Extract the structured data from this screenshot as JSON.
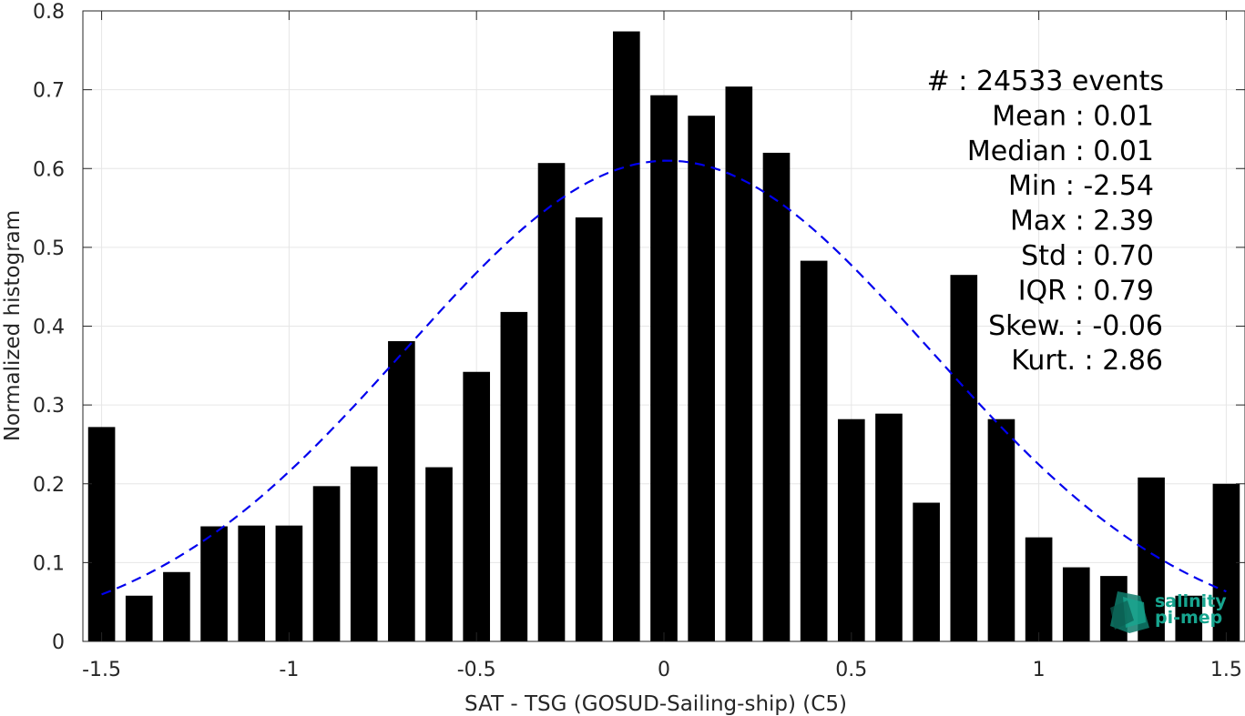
{
  "chart_data": {
    "type": "bar",
    "xlabel": "SAT - TSG (GOSUD-Sailing-ship) (C5)",
    "ylabel": "Normalized histogram",
    "xlim": [
      -1.55,
      1.55
    ],
    "ylim": [
      0,
      0.8
    ],
    "grid": true,
    "x": [
      -1.5,
      -1.4,
      -1.3,
      -1.2,
      -1.1,
      -1.0,
      -0.9,
      -0.8,
      -0.7,
      -0.6,
      -0.5,
      -0.4,
      -0.3,
      -0.2,
      -0.1,
      0.0,
      0.1,
      0.2,
      0.3,
      0.4,
      0.5,
      0.6,
      0.7,
      0.8,
      0.9,
      1.0,
      1.1,
      1.2,
      1.3,
      1.4,
      1.5
    ],
    "values": [
      0.272,
      0.058,
      0.088,
      0.146,
      0.147,
      0.147,
      0.197,
      0.222,
      0.381,
      0.221,
      0.342,
      0.418,
      0.607,
      0.538,
      0.774,
      0.693,
      0.667,
      0.704,
      0.62,
      0.483,
      0.282,
      0.289,
      0.176,
      0.465,
      0.282,
      0.132,
      0.094,
      0.083,
      0.208,
      0.058,
      0.2
    ],
    "bar_color": "#000000",
    "fit": {
      "type": "gaussian",
      "mean": 0.01,
      "std": 0.7,
      "peak": 0.61,
      "color": "#0000ee",
      "style": "dashed",
      "x_range": [
        -1.5,
        1.5
      ]
    },
    "x_ticks": [
      "-1.5",
      "-1",
      "-0.5",
      "0",
      "0.5",
      "1",
      "1.5"
    ],
    "y_ticks": [
      "0",
      "0.1",
      "0.2",
      "0.3",
      "0.4",
      "0.5",
      "0.6",
      "0.7",
      "0.8"
    ],
    "stats": [
      "#  : 24533 events",
      "Mean : 0.01",
      "Median : 0.01",
      "Min : -2.54",
      "Max : 2.39",
      "Std : 0.70",
      "IQR : 0.79",
      "Skew. : -0.06",
      "Kurt. : 2.86"
    ],
    "logo": {
      "text_line1": "salinity",
      "text_line2": "pi-mep",
      "color": "#17a58f"
    }
  }
}
